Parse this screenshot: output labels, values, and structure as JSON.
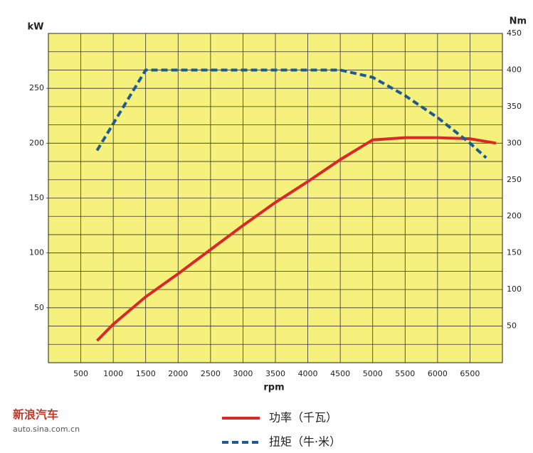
{
  "chart_data": {
    "type": "line",
    "x_label": "rpm",
    "y_label": "kW",
    "y2_label": "Nm",
    "xlim": [
      0,
      7000
    ],
    "xticks": [
      500,
      1000,
      1500,
      2000,
      2500,
      3000,
      3500,
      4000,
      4500,
      5000,
      5500,
      6000,
      6500
    ],
    "ylim": [
      0,
      300
    ],
    "yticks": [
      50,
      100,
      150,
      200,
      250
    ],
    "y2lim": [
      0,
      450
    ],
    "y2ticks": [
      50,
      100,
      150,
      200,
      250,
      300,
      350,
      400,
      450
    ],
    "grid": true,
    "background": "#f6f07c",
    "legend": "bottom",
    "series": [
      {
        "name": "功率（千瓦）",
        "color": "#d8282a",
        "dashed": false,
        "x": [
          750,
          1000,
          1500,
          2000,
          2500,
          3000,
          3500,
          4000,
          4500,
          5000,
          5500,
          6000,
          6500,
          6900
        ],
        "values": [
          20,
          35,
          60,
          81,
          103,
          125,
          146,
          165,
          185,
          203,
          205,
          205,
          204,
          200
        ]
      },
      {
        "name": "扭矩（牛·米）",
        "color": "#1e5a92",
        "dashed": true,
        "axis": "y2",
        "x": [
          750,
          1500,
          4500,
          5000,
          5500,
          6000,
          6500,
          6750
        ],
        "values": [
          290,
          400,
          400,
          390,
          365,
          335,
          300,
          280
        ]
      }
    ]
  },
  "watermark": {
    "brand": "新浪汽车",
    "url": "auto.sina.com.cn"
  }
}
